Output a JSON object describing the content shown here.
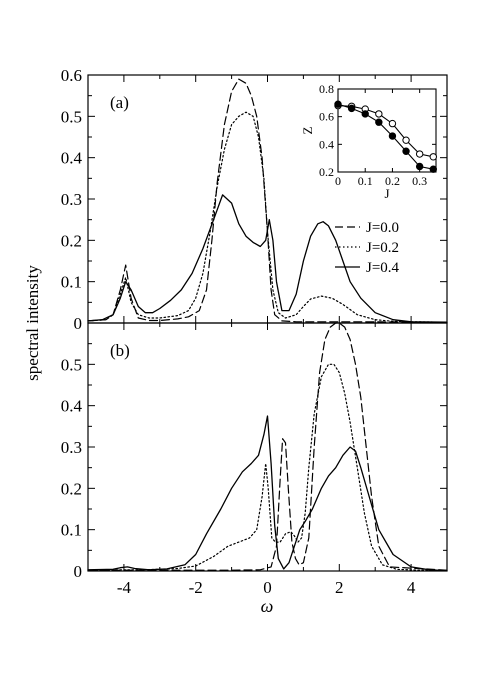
{
  "chart_data": [
    {
      "type": "line",
      "panel_label": "(a)",
      "xlim": [
        -5,
        5
      ],
      "ylim": [
        0,
        0.6
      ],
      "xticks": [
        -4,
        -2,
        0,
        2,
        4
      ],
      "yticks": [
        0,
        0.1,
        0.2,
        0.3,
        0.4,
        0.5,
        0.6
      ],
      "ytick_labels": [
        "0",
        "0.1",
        "0.2",
        "0.3",
        "0.4",
        "0.5",
        "0.6"
      ],
      "legend": {
        "placement": "right",
        "entries": [
          "J=0.0",
          "J=0.2",
          "J=0.4"
        ]
      },
      "series": [
        {
          "name": "J=0.0",
          "style": "dashed",
          "x": [
            -5,
            -4.5,
            -4.3,
            -4.1,
            -3.95,
            -3.8,
            -3.6,
            -3.3,
            -3,
            -2.5,
            -2.2,
            -1.9,
            -1.7,
            -1.55,
            -1.4,
            -1.2,
            -1,
            -0.8,
            -0.6,
            -0.45,
            -0.3,
            -0.15,
            0,
            0.1,
            0.2,
            0.4,
            0.8,
            1.5,
            2.5,
            5
          ],
          "y": [
            0.005,
            0.008,
            0.02,
            0.08,
            0.14,
            0.06,
            0.012,
            0.006,
            0.006,
            0.01,
            0.015,
            0.03,
            0.08,
            0.2,
            0.34,
            0.48,
            0.56,
            0.59,
            0.58,
            0.55,
            0.5,
            0.4,
            0.22,
            0.08,
            0.02,
            0.005,
            0.003,
            0.003,
            0.003,
            0.002
          ]
        },
        {
          "name": "J=0.2",
          "style": "dotted",
          "x": [
            -5,
            -4.5,
            -4.3,
            -4.1,
            -3.95,
            -3.8,
            -3.6,
            -3.3,
            -3,
            -2.5,
            -2.2,
            -2,
            -1.8,
            -1.6,
            -1.4,
            -1.2,
            -1,
            -0.8,
            -0.6,
            -0.4,
            -0.25,
            -0.1,
            0,
            0.15,
            0.3,
            0.5,
            0.8,
            1,
            1.2,
            1.5,
            1.8,
            2.1,
            2.5,
            3,
            3.5,
            4,
            5
          ],
          "y": [
            0.005,
            0.008,
            0.02,
            0.07,
            0.11,
            0.05,
            0.02,
            0.012,
            0.012,
            0.018,
            0.03,
            0.06,
            0.12,
            0.22,
            0.33,
            0.42,
            0.48,
            0.5,
            0.51,
            0.5,
            0.45,
            0.35,
            0.22,
            0.08,
            0.025,
            0.012,
            0.02,
            0.04,
            0.058,
            0.065,
            0.06,
            0.045,
            0.02,
            0.008,
            0.004,
            0.003,
            0.002
          ]
        },
        {
          "name": "J=0.4",
          "style": "solid",
          "x": [
            -5,
            -4.6,
            -4.3,
            -4.1,
            -3.95,
            -3.8,
            -3.6,
            -3.4,
            -3.2,
            -3,
            -2.7,
            -2.4,
            -2.1,
            -1.8,
            -1.5,
            -1.25,
            -1,
            -0.8,
            -0.6,
            -0.4,
            -0.2,
            -0.05,
            0.05,
            0.15,
            0.25,
            0.4,
            0.6,
            0.8,
            1,
            1.2,
            1.4,
            1.55,
            1.7,
            1.9,
            2.1,
            2.3,
            2.6,
            3,
            3.5,
            4,
            5
          ],
          "y": [
            0.005,
            0.008,
            0.02,
            0.06,
            0.1,
            0.08,
            0.04,
            0.025,
            0.025,
            0.035,
            0.055,
            0.08,
            0.12,
            0.18,
            0.25,
            0.31,
            0.29,
            0.24,
            0.21,
            0.195,
            0.185,
            0.2,
            0.25,
            0.2,
            0.1,
            0.03,
            0.03,
            0.07,
            0.15,
            0.21,
            0.24,
            0.245,
            0.235,
            0.2,
            0.15,
            0.1,
            0.06,
            0.025,
            0.008,
            0.003,
            0.002
          ]
        }
      ],
      "inset": {
        "type": "line",
        "xlim": [
          0,
          0.36
        ],
        "ylim": [
          0.2,
          0.8
        ],
        "xticks": [
          0,
          0.1,
          0.2,
          0.3
        ],
        "yticks": [
          0.2,
          0.4,
          0.6,
          0.8
        ],
        "xtick_labels": [
          "0",
          "0.1",
          "0.2",
          "0.3"
        ],
        "ytick_labels": [
          "0.2",
          "0.4",
          "0.6",
          "0.8"
        ],
        "xlabel": "J",
        "ylabel": "Z",
        "series": [
          {
            "marker": "open",
            "x": [
              0,
              0.05,
              0.1,
              0.15,
              0.2,
              0.25,
              0.3,
              0.35
            ],
            "y": [
              0.68,
              0.675,
              0.655,
              0.62,
              0.55,
              0.43,
              0.33,
              0.31
            ]
          },
          {
            "marker": "filled",
            "x": [
              0,
              0.05,
              0.1,
              0.15,
              0.2,
              0.25,
              0.3,
              0.35
            ],
            "y": [
              0.69,
              0.66,
              0.62,
              0.56,
              0.46,
              0.35,
              0.24,
              0.22
            ]
          }
        ]
      }
    },
    {
      "type": "line",
      "panel_label": "(b)",
      "xlim": [
        -5,
        5
      ],
      "ylim": [
        0,
        0.6
      ],
      "xticks": [
        -4,
        -2,
        0,
        2,
        4
      ],
      "xtick_labels": [
        "-4",
        "-2",
        "0",
        "2",
        "4"
      ],
      "yticks": [
        0,
        0.1,
        0.2,
        0.3,
        0.4,
        0.5
      ],
      "ytick_labels": [
        "0",
        "0.1",
        "0.2",
        "0.3",
        "0.4",
        "0.5"
      ],
      "xlabel": "ω",
      "ylabel": "spectral intensity",
      "series": [
        {
          "name": "J=0.0",
          "style": "dashed",
          "x": [
            -5,
            -3,
            -1,
            -0.2,
            0.1,
            0.25,
            0.35,
            0.42,
            0.5,
            0.58,
            0.68,
            0.78,
            0.88,
            1,
            1.15,
            1.3,
            1.45,
            1.6,
            1.75,
            1.9,
            2,
            2.15,
            2.3,
            2.45,
            2.6,
            2.75,
            2.9,
            3.1,
            3.4,
            5
          ],
          "y": [
            0.002,
            0.002,
            0.002,
            0.003,
            0.01,
            0.06,
            0.22,
            0.32,
            0.31,
            0.2,
            0.07,
            0.03,
            0.015,
            0.02,
            0.08,
            0.3,
            0.48,
            0.56,
            0.59,
            0.6,
            0.6,
            0.59,
            0.56,
            0.5,
            0.42,
            0.3,
            0.18,
            0.06,
            0.01,
            0.002
          ]
        },
        {
          "name": "J=0.2",
          "style": "dotted",
          "x": [
            -5,
            -4.2,
            -3.6,
            -3,
            -2.5,
            -2,
            -1.5,
            -1.1,
            -0.8,
            -0.5,
            -0.3,
            -0.15,
            -0.05,
            0.02,
            0.12,
            0.22,
            0.35,
            0.5,
            0.65,
            0.75,
            0.85,
            0.95,
            1.05,
            1.15,
            1.3,
            1.5,
            1.7,
            1.85,
            2,
            2.15,
            2.3,
            2.5,
            2.7,
            2.9,
            3.2,
            3.6,
            4.2,
            5
          ],
          "y": [
            0.002,
            0.003,
            0.003,
            0.004,
            0.006,
            0.012,
            0.035,
            0.06,
            0.07,
            0.08,
            0.1,
            0.18,
            0.26,
            0.2,
            0.08,
            0.07,
            0.07,
            0.09,
            0.095,
            0.085,
            0.07,
            0.08,
            0.14,
            0.25,
            0.38,
            0.47,
            0.5,
            0.5,
            0.48,
            0.43,
            0.36,
            0.25,
            0.14,
            0.06,
            0.015,
            0.004,
            0.002,
            0.001
          ]
        },
        {
          "name": "J=0.4",
          "style": "solid",
          "x": [
            -5,
            -4.3,
            -4.1,
            -3.9,
            -3.7,
            -3.3,
            -2.8,
            -2.3,
            -2,
            -1.7,
            -1.3,
            -1,
            -0.7,
            -0.45,
            -0.25,
            -0.1,
            0,
            0.1,
            0.2,
            0.3,
            0.45,
            0.6,
            0.75,
            0.9,
            1.05,
            1.25,
            1.5,
            1.7,
            1.9,
            2.1,
            2.3,
            2.45,
            2.6,
            2.8,
            3.1,
            3.5,
            4,
            4.5,
            5
          ],
          "y": [
            0.003,
            0.004,
            0.008,
            0.01,
            0.006,
            0.003,
            0.005,
            0.015,
            0.04,
            0.09,
            0.15,
            0.2,
            0.24,
            0.26,
            0.28,
            0.33,
            0.375,
            0.26,
            0.11,
            0.03,
            0.005,
            0.02,
            0.06,
            0.1,
            0.12,
            0.15,
            0.2,
            0.23,
            0.25,
            0.28,
            0.3,
            0.29,
            0.25,
            0.19,
            0.1,
            0.04,
            0.01,
            0.003,
            0.001
          ]
        }
      ]
    }
  ]
}
